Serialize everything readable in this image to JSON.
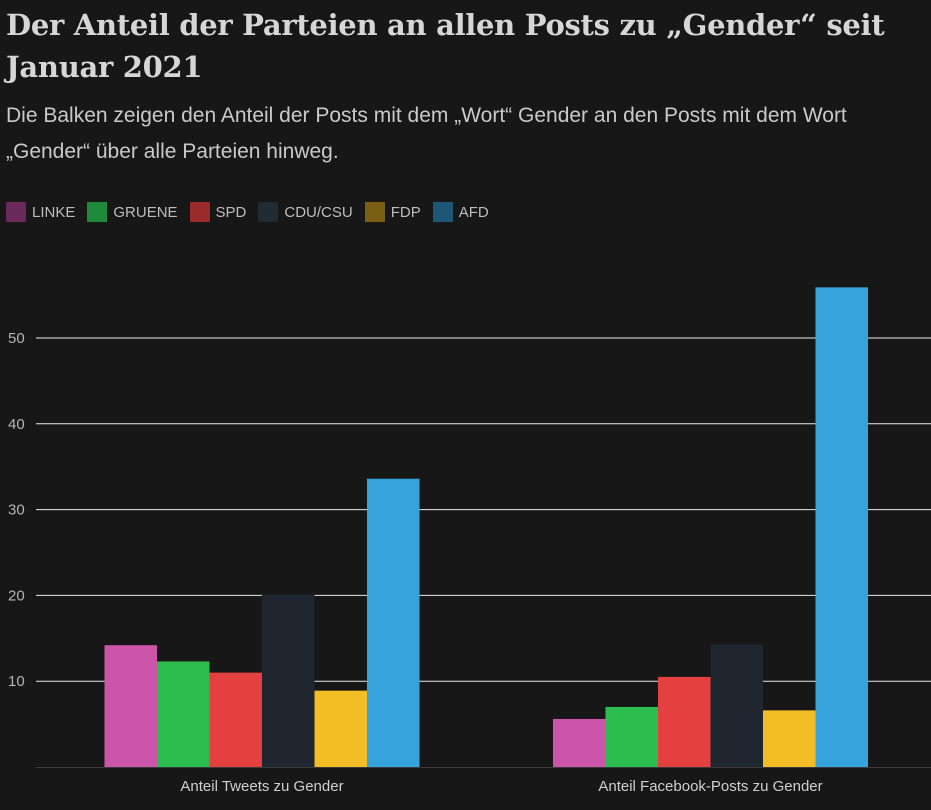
{
  "header": {
    "title": "Der Anteil der Parteien an allen Posts zu „Gender“ seit Januar 2021",
    "subtitle": "Die Balken zeigen den Anteil der Posts mit dem „Wort“ Gender an den Posts mit dem Wort „Gender“ über alle Parteien hinweg."
  },
  "chart_data": {
    "type": "bar",
    "title": "Der Anteil der Parteien an allen Posts zu „Gender“ seit Januar 2021",
    "subtitle": "Die Balken zeigen den Anteil der Posts mit dem „Wort“ Gender an den Posts mit dem Wort „Gender“ über alle Parteien hinweg.",
    "xlabel": "",
    "ylabel": "",
    "ylim": [
      0,
      60
    ],
    "yticks": [
      10,
      20,
      30,
      40,
      50
    ],
    "grid": true,
    "legend_position": "top-left",
    "categories": [
      "Anteil Tweets zu Gender",
      "Anteil Facebook-Posts zu Gender"
    ],
    "series": [
      {
        "name": "LINKE",
        "bar_color": "#cc55aa",
        "legend_color": "#6b2a5c",
        "values": [
          14.2,
          5.6
        ]
      },
      {
        "name": "GRUENE",
        "bar_color": "#2dbd4f",
        "legend_color": "#1f8a3b",
        "values": [
          12.3,
          7.0
        ]
      },
      {
        "name": "SPD",
        "bar_color": "#e3403f",
        "legend_color": "#9b2a2a",
        "values": [
          11.0,
          10.5
        ]
      },
      {
        "name": "CDU/CSU",
        "bar_color": "#1f262f",
        "legend_color": "#222a33",
        "values": [
          20.1,
          14.3
        ]
      },
      {
        "name": "FDP",
        "bar_color": "#f3bd26",
        "legend_color": "#7a5e13",
        "values": [
          8.9,
          6.6
        ]
      },
      {
        "name": "AFD",
        "bar_color": "#36a3dc",
        "legend_color": "#1d5677",
        "values": [
          33.6,
          55.9
        ]
      }
    ]
  }
}
